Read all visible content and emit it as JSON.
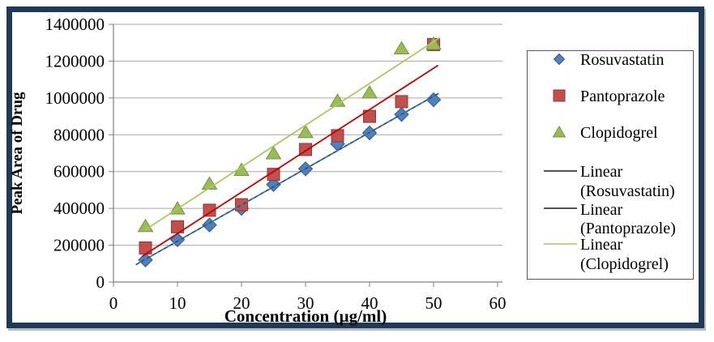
{
  "chart_data": {
    "type": "scatter",
    "title": "",
    "xlabel": "Concentration (µg/ml)",
    "ylabel": "Peak Area of Drug",
    "xlim": [
      0,
      60
    ],
    "ylim": [
      0,
      1400000
    ],
    "x_ticks": [
      0,
      10,
      20,
      30,
      40,
      50,
      60
    ],
    "y_ticks": [
      0,
      200000,
      400000,
      600000,
      800000,
      1000000,
      1200000,
      1400000
    ],
    "grid": "horizontal",
    "legend_position": "right",
    "x": [
      5,
      10,
      15,
      20,
      25,
      30,
      35,
      40,
      45,
      50
    ],
    "series": [
      {
        "name": "Rosuvastatin",
        "marker": "diamond",
        "fill": "#4f81bd",
        "stroke": "#2f5a84",
        "values": [
          120000,
          230000,
          310000,
          400000,
          530000,
          615000,
          750000,
          810000,
          910000,
          990000
        ]
      },
      {
        "name": "Pantoprazole",
        "marker": "square",
        "fill": "#c0504d",
        "stroke": "#943634",
        "values": [
          185000,
          300000,
          390000,
          420000,
          585000,
          720000,
          795000,
          900000,
          980000,
          1290000
        ]
      },
      {
        "name": "Clopidogrel",
        "marker": "triangle",
        "fill": "#9bbb59",
        "stroke": "#76933c",
        "values": [
          305000,
          400000,
          535000,
          610000,
          700000,
          815000,
          985000,
          1030000,
          1270000,
          1295000
        ]
      }
    ],
    "trendlines": [
      {
        "name": "Linear (Rosuvastatin)",
        "x1": 3.5,
        "y1": 94000,
        "x2": 50.8,
        "y2": 1025000,
        "color": "#4a74a6",
        "overlay": "#1f3f63"
      },
      {
        "name": "Linear (Pantoprazole)",
        "x1": 4.5,
        "y1": 140000,
        "x2": 50.7,
        "y2": 1177000,
        "color": "#c00000"
      },
      {
        "name": "Linear (Clopidogrel)",
        "x1": 4.8,
        "y1": 280000,
        "x2": 50.9,
        "y2": 1326000,
        "color": "#abc766"
      }
    ],
    "legend": {
      "items": [
        {
          "label": "Rosuvastatin",
          "swatch": "diamond",
          "color": "#4f81bd",
          "stroke": "#2f5a84"
        },
        {
          "label": "Pantoprazole",
          "swatch": "square",
          "color": "#c0504d",
          "stroke": "#943634"
        },
        {
          "label": "Clopidogrel",
          "swatch": "triangle",
          "color": "#9bbb59",
          "stroke": "#76933c"
        },
        {
          "label": "Linear (Rosuvastatin)",
          "swatch": "line",
          "color": "#1a1a1a"
        },
        {
          "label": "Linear (Pantoprazole)",
          "swatch": "line",
          "color": "#1a1a1a"
        },
        {
          "label": "Linear (Clopidogrel)",
          "swatch": "line",
          "color": "#abc766"
        }
      ]
    },
    "colors": {
      "frame_border": "#1f3a56",
      "gridline": "#a6a6a6",
      "axis": "#808080",
      "legend_border": "#5f5368",
      "text": "#000000",
      "background": "#ffffff"
    }
  }
}
